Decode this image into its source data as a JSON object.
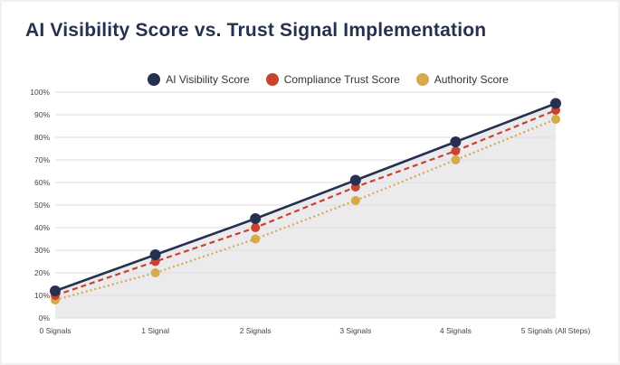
{
  "title": "AI Visibility Score vs. Trust Signal Implementation",
  "chart_data": {
    "type": "line",
    "categories": [
      "0 Signals",
      "1 Signal",
      "2 Signals",
      "3 Signals",
      "4 Signals",
      "5 Signals (All Steps)"
    ],
    "yticks": [
      "0%",
      "10%",
      "20%",
      "30%",
      "40%",
      "50%",
      "60%",
      "70%",
      "80%",
      "90%",
      "100%"
    ],
    "ylim": [
      0,
      100
    ],
    "grid": true,
    "legend_position": "top-center",
    "series": [
      {
        "name": "AI Visibility Score",
        "values": [
          12,
          28,
          44,
          61,
          78,
          95
        ],
        "color": "#263150",
        "style": "solid"
      },
      {
        "name": "Compliance Trust Score",
        "values": [
          10,
          25,
          40,
          58,
          74,
          92
        ],
        "color": "#c9432f",
        "style": "dashed"
      },
      {
        "name": "Authority Score",
        "values": [
          8,
          20,
          35,
          52,
          70,
          88
        ],
        "color": "#d6a94a",
        "style": "dotted"
      }
    ]
  }
}
